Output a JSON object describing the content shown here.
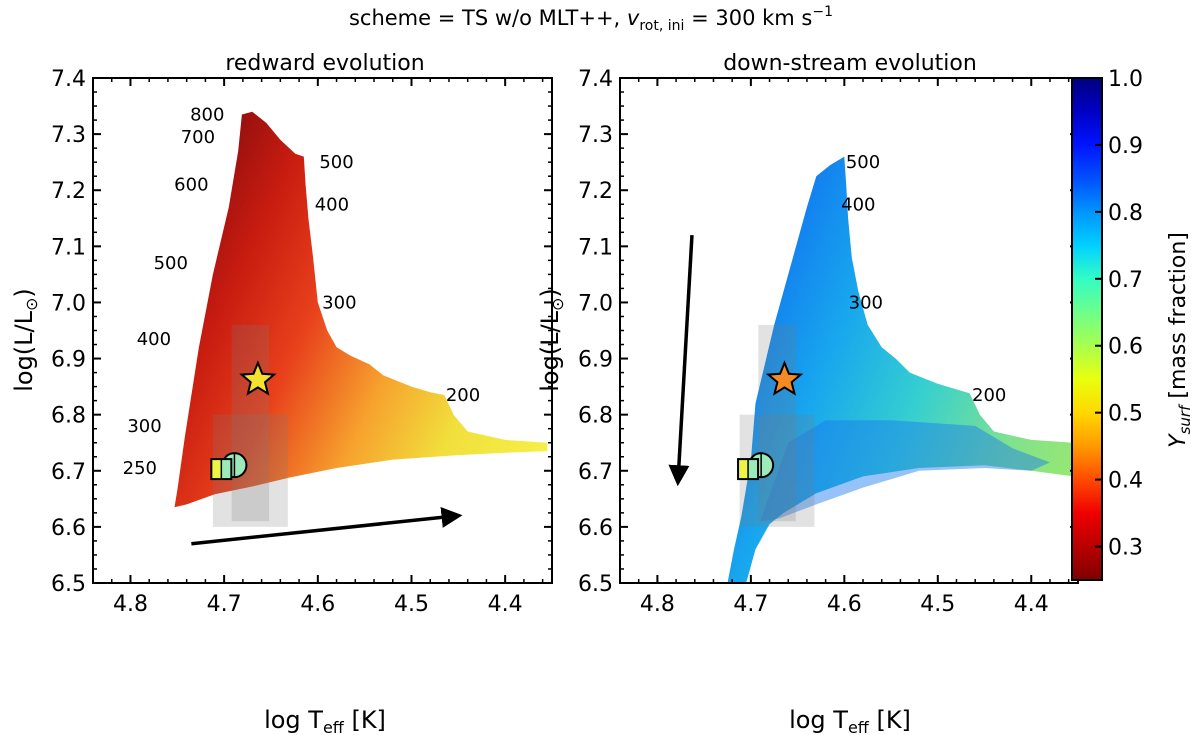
{
  "figure": {
    "suptitle_prefix": "scheme = TS w/o MLT++, ",
    "suptitle_v": "v",
    "suptitle_sub": "rot, ini",
    "suptitle_mid": " = 300 km s",
    "suptitle_sup": "−1"
  },
  "chart_data": [
    {
      "type": "filled-region-with-markers",
      "title": "redward evolution",
      "xlabel_main": "log T",
      "xlabel_sub": "eff",
      "xlabel_unit": " [K]",
      "ylabel_main": "log(L/L",
      "ylabel_sym": "⊙",
      "ylabel_end": ")",
      "xlim": [
        4.84,
        4.35
      ],
      "ylim": [
        6.5,
        7.4
      ],
      "x_ticks": [
        4.8,
        4.7,
        4.6,
        4.5,
        4.4
      ],
      "x_tick_labels": [
        "4.8",
        "4.7",
        "4.6",
        "4.5",
        "4.4"
      ],
      "y_ticks": [
        6.5,
        6.6,
        6.7,
        6.8,
        6.9,
        7.0,
        7.1,
        7.2,
        7.3,
        7.4
      ],
      "y_tick_labels": [
        "6.5",
        "6.6",
        "6.7",
        "6.8",
        "6.9",
        "7.0",
        "7.1",
        "7.2",
        "7.3",
        "7.4"
      ],
      "region_outline": [
        [
          4.753,
          6.635
        ],
        [
          4.75,
          6.665
        ],
        [
          4.742,
          6.76
        ],
        [
          4.727,
          6.92
        ],
        [
          4.712,
          7.05
        ],
        [
          4.695,
          7.17
        ],
        [
          4.685,
          7.27
        ],
        [
          4.681,
          7.335
        ],
        [
          4.67,
          7.34
        ],
        [
          4.655,
          7.32
        ],
        [
          4.64,
          7.29
        ],
        [
          4.624,
          7.265
        ],
        [
          4.615,
          7.26
        ],
        [
          4.613,
          7.21
        ],
        [
          4.61,
          7.15
        ],
        [
          4.605,
          7.08
        ],
        [
          4.6,
          7.0
        ],
        [
          4.59,
          6.95
        ],
        [
          4.58,
          6.92
        ],
        [
          4.565,
          6.905
        ],
        [
          4.545,
          6.89
        ],
        [
          4.53,
          6.87
        ],
        [
          4.515,
          6.86
        ],
        [
          4.5,
          6.85
        ],
        [
          4.48,
          6.84
        ],
        [
          4.465,
          6.835
        ],
        [
          4.455,
          6.8
        ],
        [
          4.44,
          6.77
        ],
        [
          4.4,
          6.755
        ],
        [
          4.355,
          6.75
        ],
        [
          4.355,
          6.735
        ],
        [
          4.4,
          6.732
        ],
        [
          4.45,
          6.728
        ],
        [
          4.52,
          6.72
        ],
        [
          4.58,
          6.705
        ],
        [
          4.63,
          6.688
        ],
        [
          4.67,
          6.672
        ],
        [
          4.71,
          6.658
        ],
        [
          4.74,
          6.64
        ]
      ],
      "gradient_stops": [
        {
          "offset": 0,
          "color": "#900e0e"
        },
        {
          "offset": 0.18,
          "color": "#c81c10"
        },
        {
          "offset": 0.38,
          "color": "#e8411c"
        },
        {
          "offset": 0.6,
          "color": "#f7a22e"
        },
        {
          "offset": 0.8,
          "color": "#f1df3c"
        },
        {
          "offset": 1,
          "color": "#f5ee46"
        }
      ],
      "shaded_boxes": [
        {
          "x": [
            4.712,
            4.632
          ],
          "y": [
            6.6,
            6.8
          ]
        },
        {
          "x": [
            4.692,
            4.652
          ],
          "y": [
            6.61,
            6.96
          ]
        }
      ],
      "left_labels": [
        {
          "text": "800",
          "x": 4.718,
          "y": 7.335
        },
        {
          "text": "700",
          "x": 4.728,
          "y": 7.295
        },
        {
          "text": "600",
          "x": 4.735,
          "y": 7.21
        },
        {
          "text": "500",
          "x": 4.757,
          "y": 7.07
        },
        {
          "text": "400",
          "x": 4.775,
          "y": 6.935
        },
        {
          "text": "300",
          "x": 4.785,
          "y": 6.78
        },
        {
          "text": "250",
          "x": 4.79,
          "y": 6.705
        }
      ],
      "right_labels": [
        {
          "text": "500",
          "x": 4.58,
          "y": 7.25
        },
        {
          "text": "400",
          "x": 4.585,
          "y": 7.175
        },
        {
          "text": "300",
          "x": 4.577,
          "y": 7.0
        },
        {
          "text": "200",
          "x": 4.445,
          "y": 6.835
        }
      ],
      "arrow": {
        "from": [
          4.735,
          6.57
        ],
        "to": [
          4.45,
          6.62
        ]
      },
      "markers": [
        {
          "kind": "star",
          "x": 4.664,
          "y": 6.862,
          "color": "#f4e130"
        },
        {
          "kind": "circle",
          "x": 4.689,
          "y": 6.71,
          "color": "#9ceab9"
        },
        {
          "kind": "half-square",
          "x": 4.703,
          "y": 6.703,
          "color_left": "#eef445",
          "color_right": "#9ceab9"
        }
      ]
    },
    {
      "type": "filled-region-with-markers",
      "title": "down-stream evolution",
      "xlabel_main": "log T",
      "xlabel_sub": "eff",
      "xlabel_unit": " [K]",
      "ylabel_main": "log(L/L",
      "ylabel_sym": "⊙",
      "ylabel_end": ")",
      "xlim": [
        4.84,
        4.35
      ],
      "ylim": [
        6.5,
        7.4
      ],
      "x_ticks": [
        4.8,
        4.7,
        4.6,
        4.5,
        4.4
      ],
      "x_tick_labels": [
        "4.8",
        "4.7",
        "4.6",
        "4.5",
        "4.4"
      ],
      "y_ticks": [
        6.5,
        6.6,
        6.7,
        6.8,
        6.9,
        7.0,
        7.1,
        7.2,
        7.3,
        7.4
      ],
      "y_tick_labels": [
        "6.5",
        "6.6",
        "6.7",
        "6.8",
        "6.9",
        "7.0",
        "7.1",
        "7.2",
        "7.3",
        "7.4"
      ],
      "region_outline": [
        [
          4.725,
          6.5
        ],
        [
          4.718,
          6.56
        ],
        [
          4.71,
          6.62
        ],
        [
          4.7,
          6.72
        ],
        [
          4.695,
          6.82
        ],
        [
          4.675,
          6.96
        ],
        [
          4.655,
          7.08
        ],
        [
          4.64,
          7.17
        ],
        [
          4.63,
          7.225
        ],
        [
          4.615,
          7.245
        ],
        [
          4.6,
          7.26
        ],
        [
          4.598,
          7.21
        ],
        [
          4.596,
          7.15
        ],
        [
          4.592,
          7.08
        ],
        [
          4.585,
          7.02
        ],
        [
          4.575,
          6.96
        ],
        [
          4.56,
          6.92
        ],
        [
          4.545,
          6.9
        ],
        [
          4.53,
          6.875
        ],
        [
          4.515,
          6.865
        ],
        [
          4.5,
          6.855
        ],
        [
          4.48,
          6.845
        ],
        [
          4.466,
          6.838
        ],
        [
          4.455,
          6.8
        ],
        [
          4.44,
          6.77
        ],
        [
          4.4,
          6.755
        ],
        [
          4.355,
          6.75
        ],
        [
          4.355,
          6.69
        ],
        [
          4.4,
          6.7
        ],
        [
          4.45,
          6.71
        ],
        [
          4.52,
          6.705
        ],
        [
          4.58,
          6.69
        ],
        [
          4.63,
          6.66
        ],
        [
          4.665,
          6.625
        ],
        [
          4.68,
          6.605
        ],
        [
          4.695,
          6.56
        ],
        [
          4.705,
          6.5
        ]
      ],
      "gradient_stops": [
        {
          "offset": 0,
          "color": "#0f6df0"
        },
        {
          "offset": 0.3,
          "color": "#18a6ee"
        },
        {
          "offset": 0.55,
          "color": "#36cfd0"
        },
        {
          "offset": 0.8,
          "color": "#7fe28e"
        },
        {
          "offset": 1,
          "color": "#9be86e"
        }
      ],
      "inner_band": [
        [
          4.69,
          6.61
        ],
        [
          4.66,
          6.75
        ],
        [
          4.62,
          6.79
        ],
        [
          4.55,
          6.79
        ],
        [
          4.46,
          6.78
        ],
        [
          4.42,
          6.74
        ],
        [
          4.38,
          6.715
        ],
        [
          4.4,
          6.7
        ],
        [
          4.45,
          6.705
        ],
        [
          4.52,
          6.7
        ],
        [
          4.58,
          6.67
        ],
        [
          4.63,
          6.64
        ],
        [
          4.67,
          6.615
        ]
      ],
      "shaded_boxes": [
        {
          "x": [
            4.712,
            4.632
          ],
          "y": [
            6.6,
            6.8
          ]
        },
        {
          "x": [
            4.692,
            4.652
          ],
          "y": [
            6.61,
            6.96
          ]
        }
      ],
      "left_labels": [],
      "right_labels": [
        {
          "text": "500",
          "x": 4.58,
          "y": 7.25
        },
        {
          "text": "400",
          "x": 4.585,
          "y": 7.175
        },
        {
          "text": "300",
          "x": 4.577,
          "y": 7.0
        },
        {
          "text": "200",
          "x": 4.445,
          "y": 6.835
        }
      ],
      "arrow": {
        "from": [
          4.763,
          7.12
        ],
        "to": [
          4.778,
          6.68
        ]
      },
      "markers": [
        {
          "kind": "star",
          "x": 4.664,
          "y": 6.862,
          "color": "#f58a25"
        },
        {
          "kind": "circle",
          "x": 4.689,
          "y": 6.71,
          "color": "#9ceab9"
        },
        {
          "kind": "half-square",
          "x": 4.703,
          "y": 6.703,
          "color_left": "#eef445",
          "color_right": "#9ceab9"
        }
      ]
    },
    {
      "type": "colorbar",
      "label": "Y",
      "label_sub": "surf",
      "label_rest": " [mass fraction]",
      "range": [
        0.25,
        1.0
      ],
      "ticks": [
        0.3,
        0.4,
        0.5,
        0.6,
        0.7,
        0.8,
        0.9,
        1.0
      ],
      "tick_labels": [
        "0.3",
        "0.4",
        "0.5",
        "0.6",
        "0.7",
        "0.8",
        "0.9",
        "1.0"
      ],
      "colormap": "jet",
      "stops": [
        "#7f0000",
        "#b80000",
        "#f00000",
        "#ff4a00",
        "#ff9a00",
        "#ffd800",
        "#e9ff0e",
        "#a8ff4e",
        "#6dff8a",
        "#32fdc5",
        "#00d0ff",
        "#0094ff",
        "#0050ff",
        "#0014ff",
        "#0000c4",
        "#00007f"
      ]
    }
  ]
}
